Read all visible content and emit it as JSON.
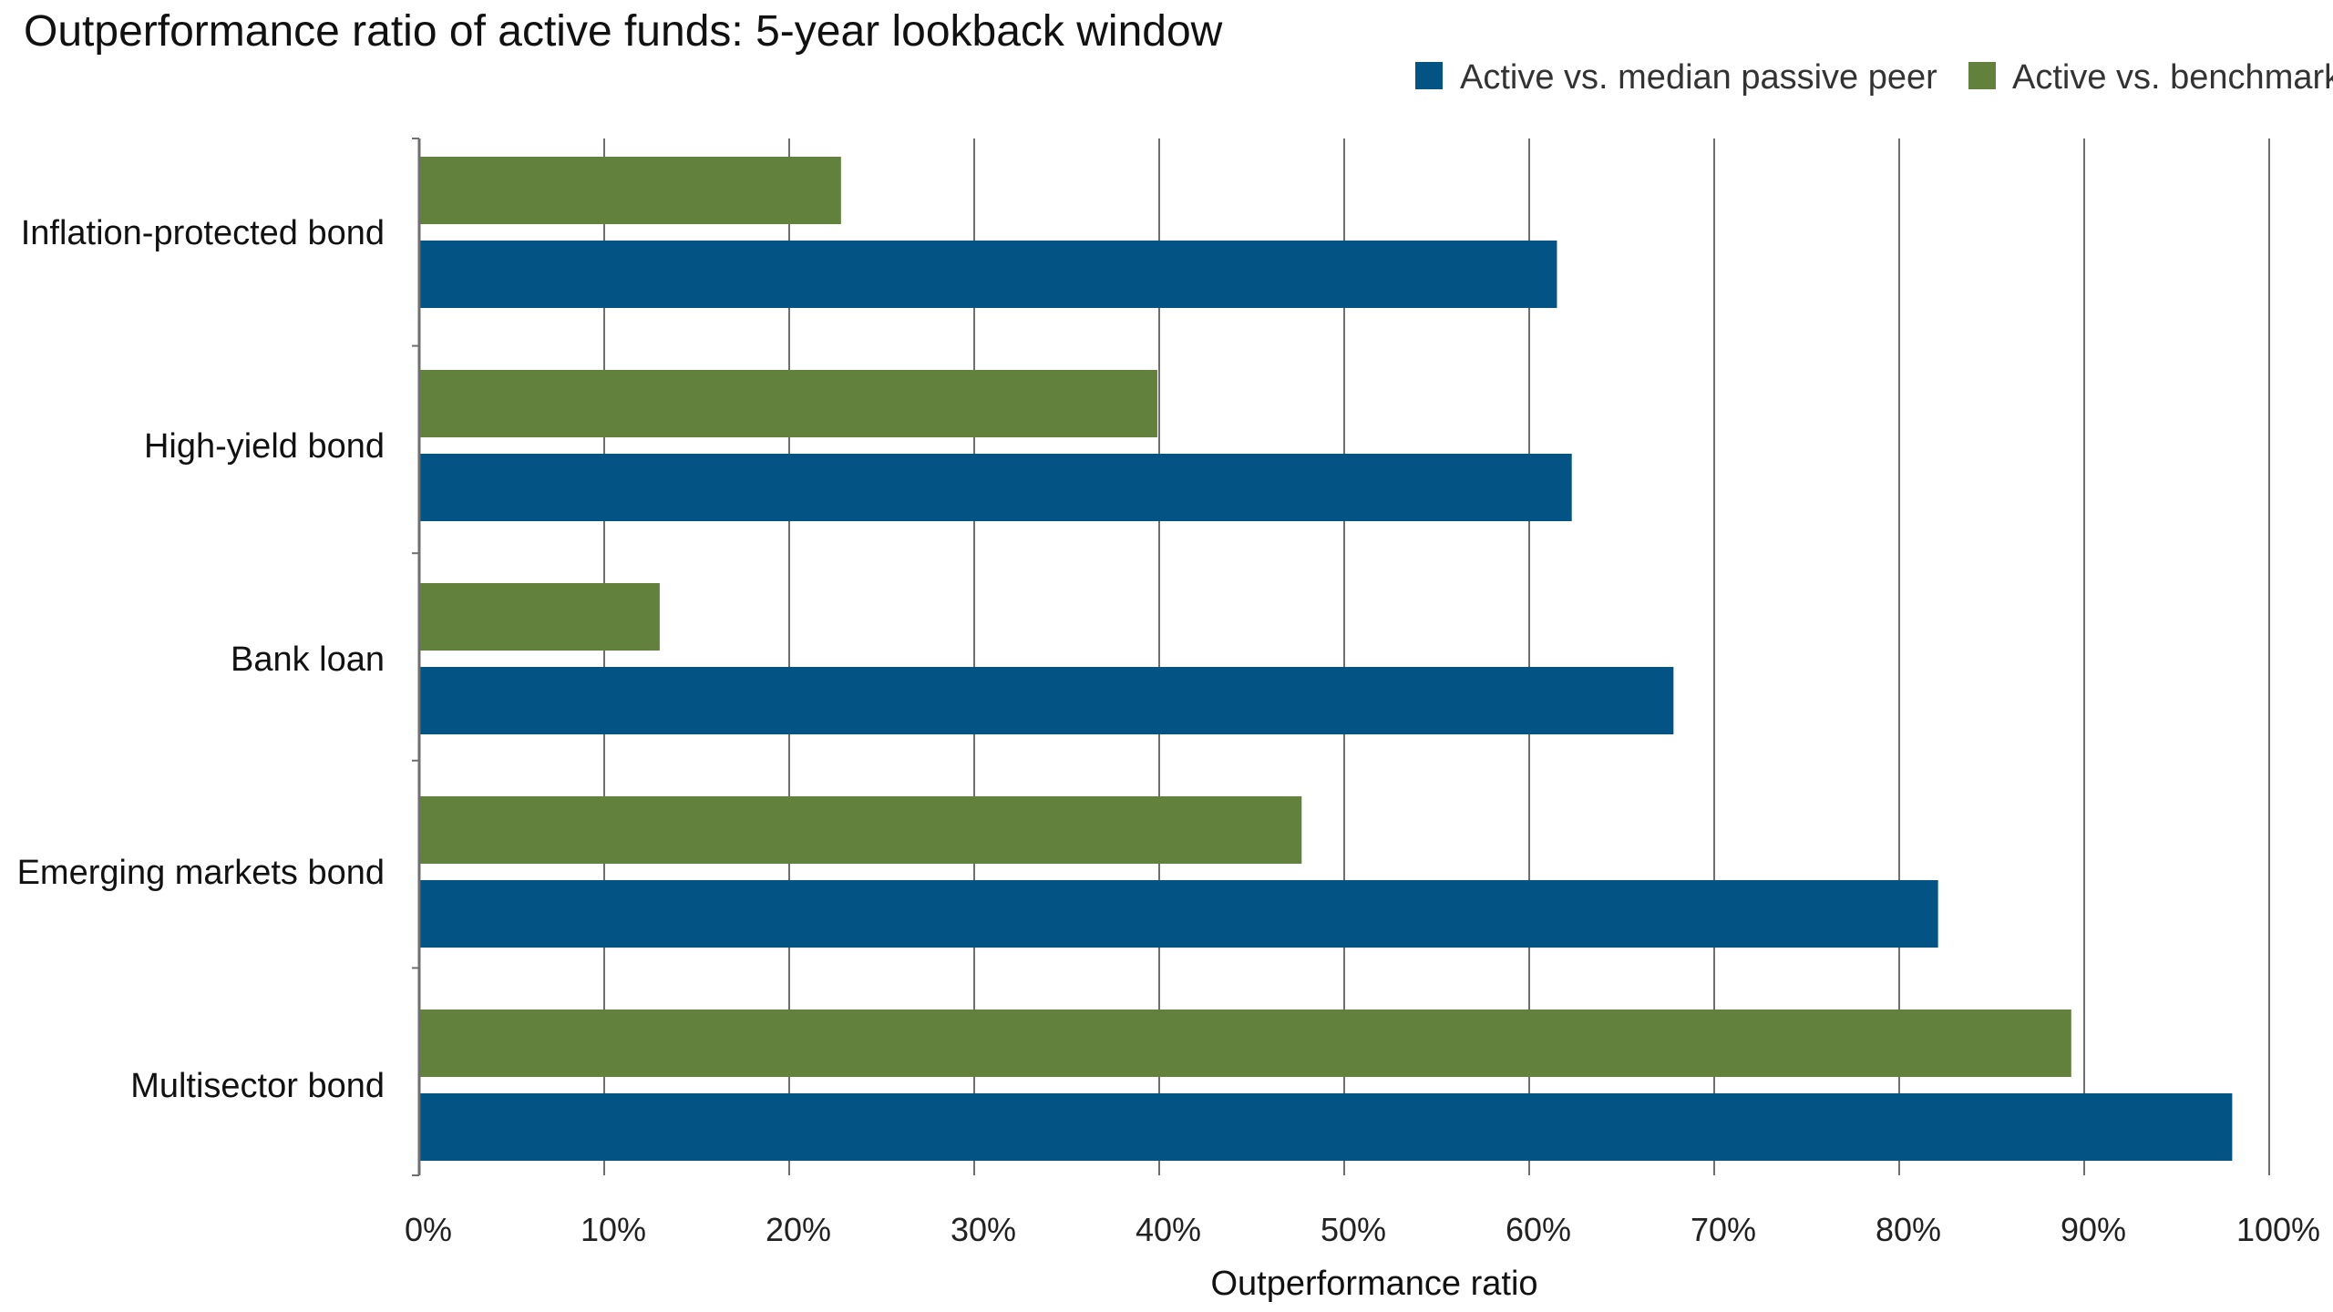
{
  "chart_data": {
    "type": "bar",
    "orientation": "horizontal",
    "title": "Outperformance ratio of active funds: 5-year lookback window",
    "xlabel": "Outperformance ratio",
    "ylabel": "",
    "xlim": [
      0,
      100
    ],
    "x_ticks": [
      0,
      10,
      20,
      30,
      40,
      50,
      60,
      70,
      80,
      90,
      100
    ],
    "x_tick_labels": [
      "0%",
      "10%",
      "20%",
      "30%",
      "40%",
      "50%",
      "60%",
      "70%",
      "80%",
      "90%",
      "100%"
    ],
    "grid": "vertical",
    "legend_position": "top-right",
    "categories": [
      "Inflation-protected bond",
      "High-yield bond",
      "Bank loan",
      "Emerging markets bond",
      "Multisector bond"
    ],
    "series": [
      {
        "name": "Active vs. median passive peer",
        "color": "#035484",
        "values": [
          61.5,
          62.3,
          67.8,
          82.1,
          98.0
        ]
      },
      {
        "name": "Active vs. benchmark",
        "color": "#62813d",
        "values": [
          22.8,
          39.9,
          13.0,
          47.7,
          89.3
        ]
      }
    ],
    "grid_color": "#6f6f6f",
    "axis_color": "#6f6f6f"
  }
}
